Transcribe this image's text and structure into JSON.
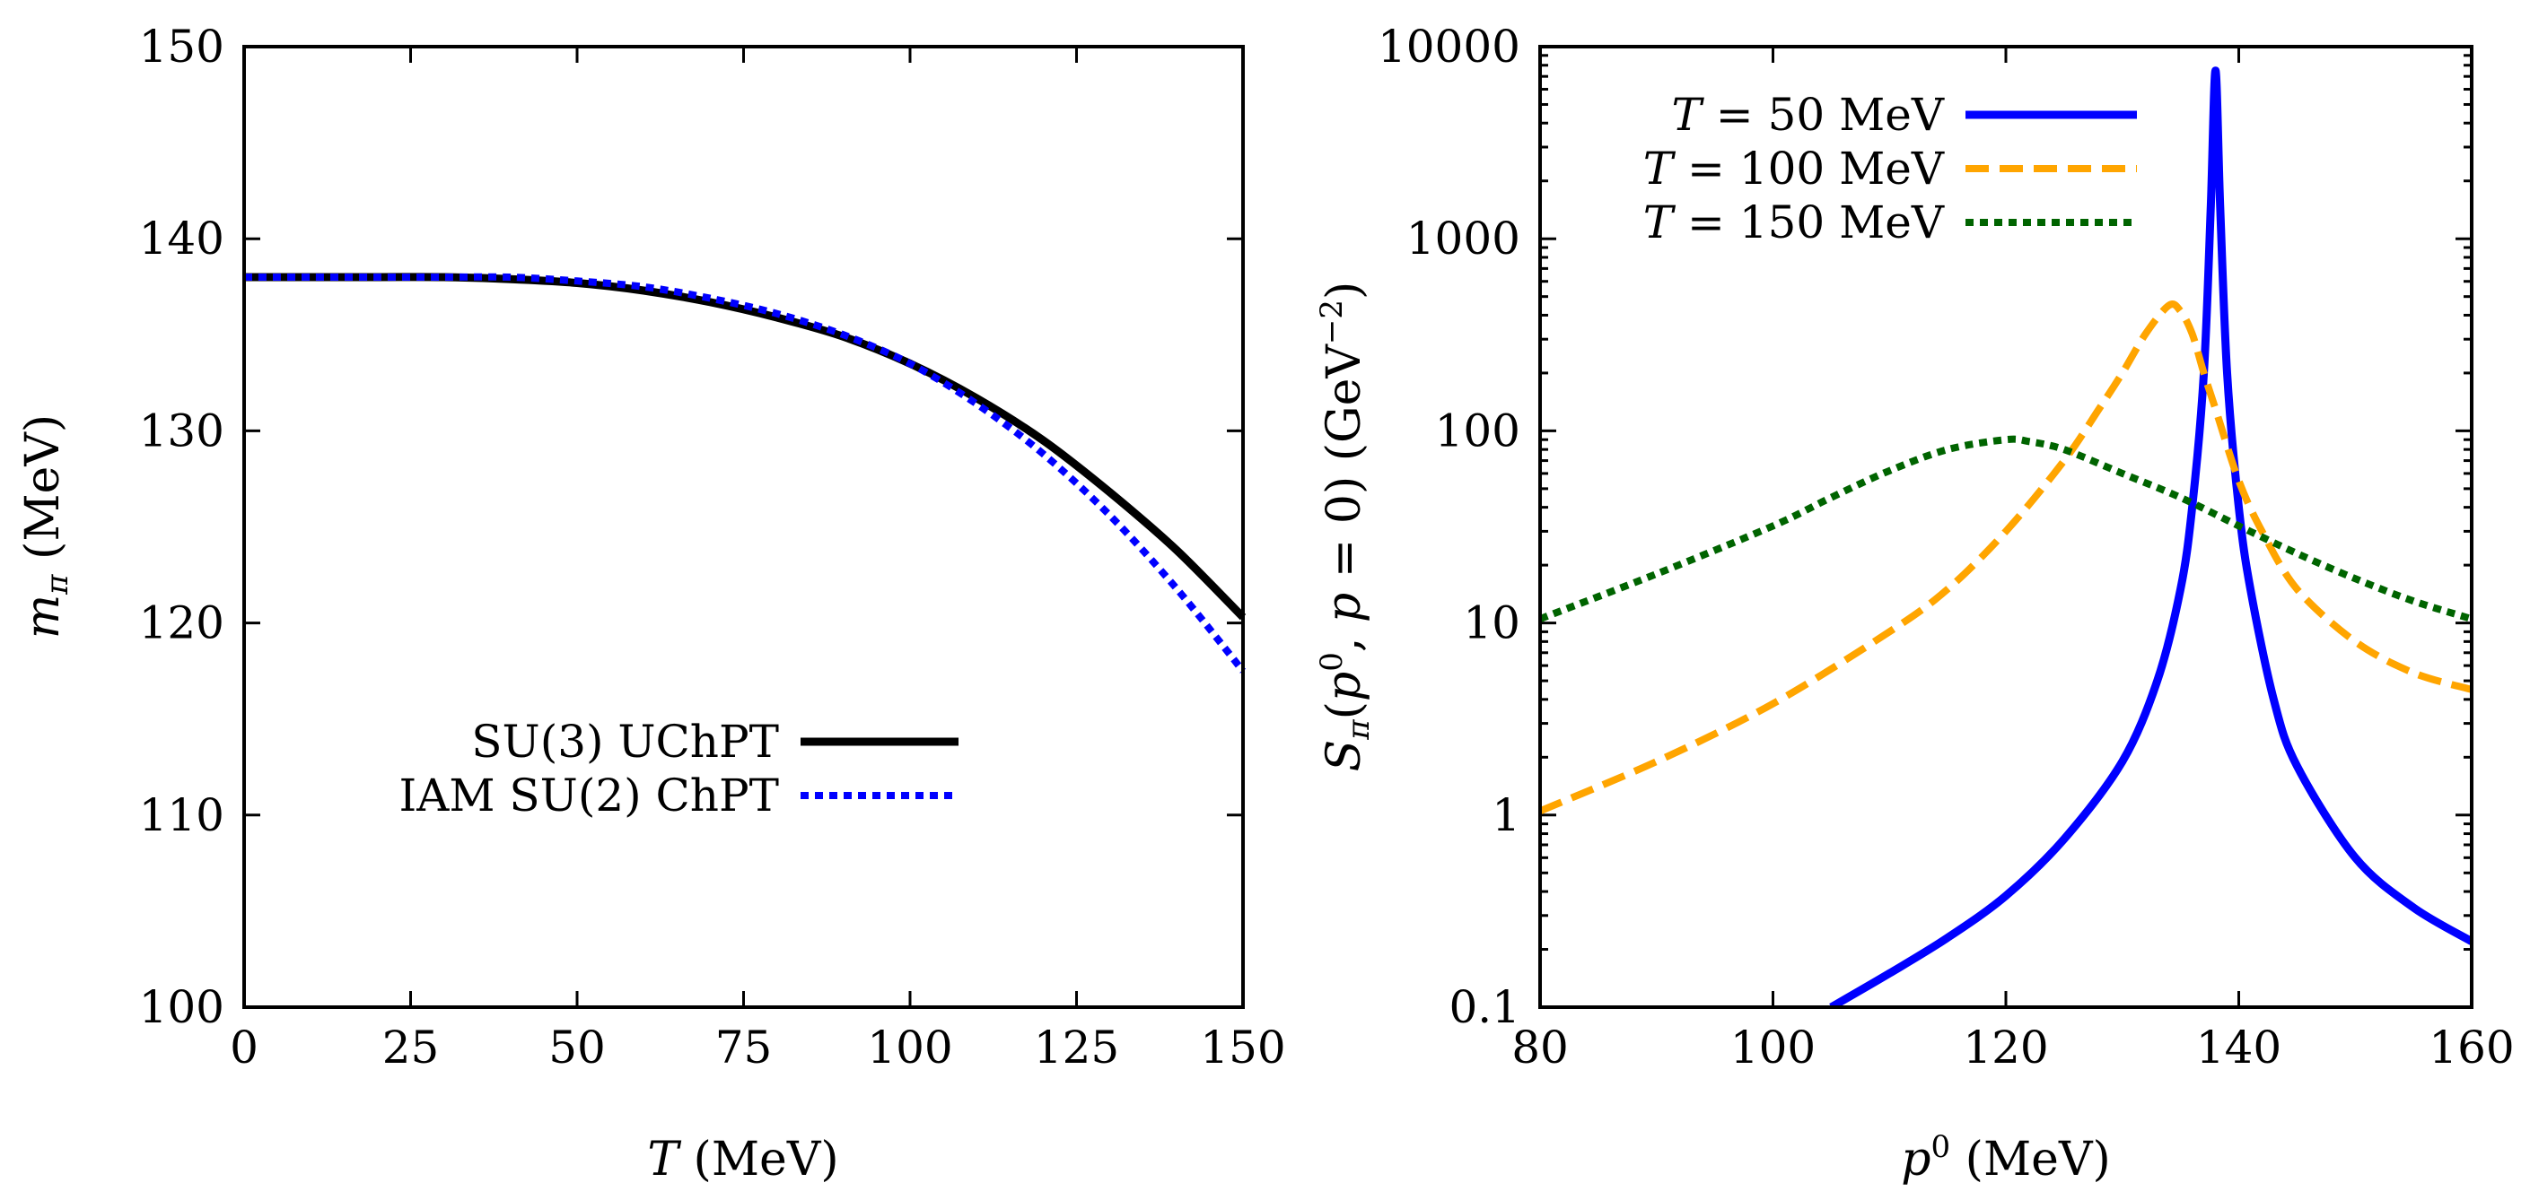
{
  "chart_data": [
    {
      "type": "line",
      "xlabel": "T (MeV)",
      "ylabel": "m_π (MeV)",
      "xlim": [
        0,
        150
      ],
      "ylim": [
        100,
        150
      ],
      "xticks": [
        "0",
        "25",
        "50",
        "75",
        "100",
        "125",
        "150"
      ],
      "yticks": [
        "100",
        "110",
        "120",
        "130",
        "140",
        "150"
      ],
      "legend_position": "bottom-left",
      "series": [
        {
          "name": "SU(3) UChPT",
          "color": "#000000",
          "style": "solid",
          "x": [
            0,
            10,
            20,
            30,
            40,
            50,
            60,
            70,
            80,
            90,
            100,
            110,
            120,
            130,
            140,
            150
          ],
          "y": [
            138.0,
            138.0,
            138.0,
            138.0,
            137.9,
            137.7,
            137.3,
            136.7,
            135.9,
            134.9,
            133.5,
            131.7,
            129.5,
            126.8,
            123.8,
            120.3
          ]
        },
        {
          "name": "IAM SU(2) ChPT",
          "color": "#0000ff",
          "style": "dotted",
          "x": [
            0,
            10,
            20,
            30,
            40,
            50,
            60,
            70,
            80,
            90,
            100,
            110,
            120,
            130,
            140,
            150
          ],
          "y": [
            138.0,
            138.0,
            138.0,
            138.0,
            138.0,
            137.8,
            137.5,
            136.9,
            136.1,
            135.0,
            133.5,
            131.4,
            128.8,
            125.6,
            121.8,
            117.5
          ]
        }
      ]
    },
    {
      "type": "line",
      "xlabel": "p⁰ (MeV)",
      "ylabel": "S_π(p⁰, p = 0) (GeV⁻²)",
      "xlim": [
        80,
        160
      ],
      "ylim": [
        0.1,
        10000
      ],
      "yscale": "log",
      "xticks": [
        "80",
        "100",
        "120",
        "140",
        "160"
      ],
      "yticks": [
        "0.1",
        "1",
        "10",
        "100",
        "1000",
        "10000"
      ],
      "legend_position": "top-left",
      "series": [
        {
          "name": "T = 50 MeV",
          "color": "#0000ff",
          "style": "solid",
          "x": [
            105,
            110,
            115,
            120,
            125,
            130,
            133,
            135,
            136,
            137,
            137.6,
            138,
            138.4,
            139,
            140,
            141,
            143,
            145,
            150,
            155,
            160
          ],
          "y": [
            0.1,
            0.15,
            0.23,
            0.38,
            0.75,
            1.9,
            5,
            15,
            40,
            200,
            1500,
            7500,
            1500,
            200,
            40,
            15,
            4,
            1.8,
            0.6,
            0.33,
            0.22
          ]
        },
        {
          "name": "T = 100 MeV",
          "color": "#ffa500",
          "style": "dashed",
          "x": [
            80,
            90,
            100,
            110,
            115,
            120,
            125,
            128,
            130,
            132,
            134,
            135,
            136,
            137,
            138,
            140,
            142,
            145,
            150,
            155,
            160
          ],
          "y": [
            1.05,
            1.9,
            3.8,
            9,
            15,
            30,
            70,
            130,
            200,
            320,
            450,
            420,
            320,
            200,
            130,
            55,
            30,
            15,
            8,
            5.5,
            4.5
          ]
        },
        {
          "name": "T = 150 MeV",
          "color": "#006400",
          "style": "dotted",
          "x": [
            80,
            90,
            100,
            105,
            110,
            115,
            120,
            122,
            125,
            130,
            135,
            140,
            145,
            150,
            155,
            160
          ],
          "y": [
            10.5,
            18,
            32,
            45,
            62,
            80,
            90,
            88,
            80,
            60,
            45,
            32,
            23,
            17,
            13,
            10.5
          ]
        }
      ]
    }
  ]
}
